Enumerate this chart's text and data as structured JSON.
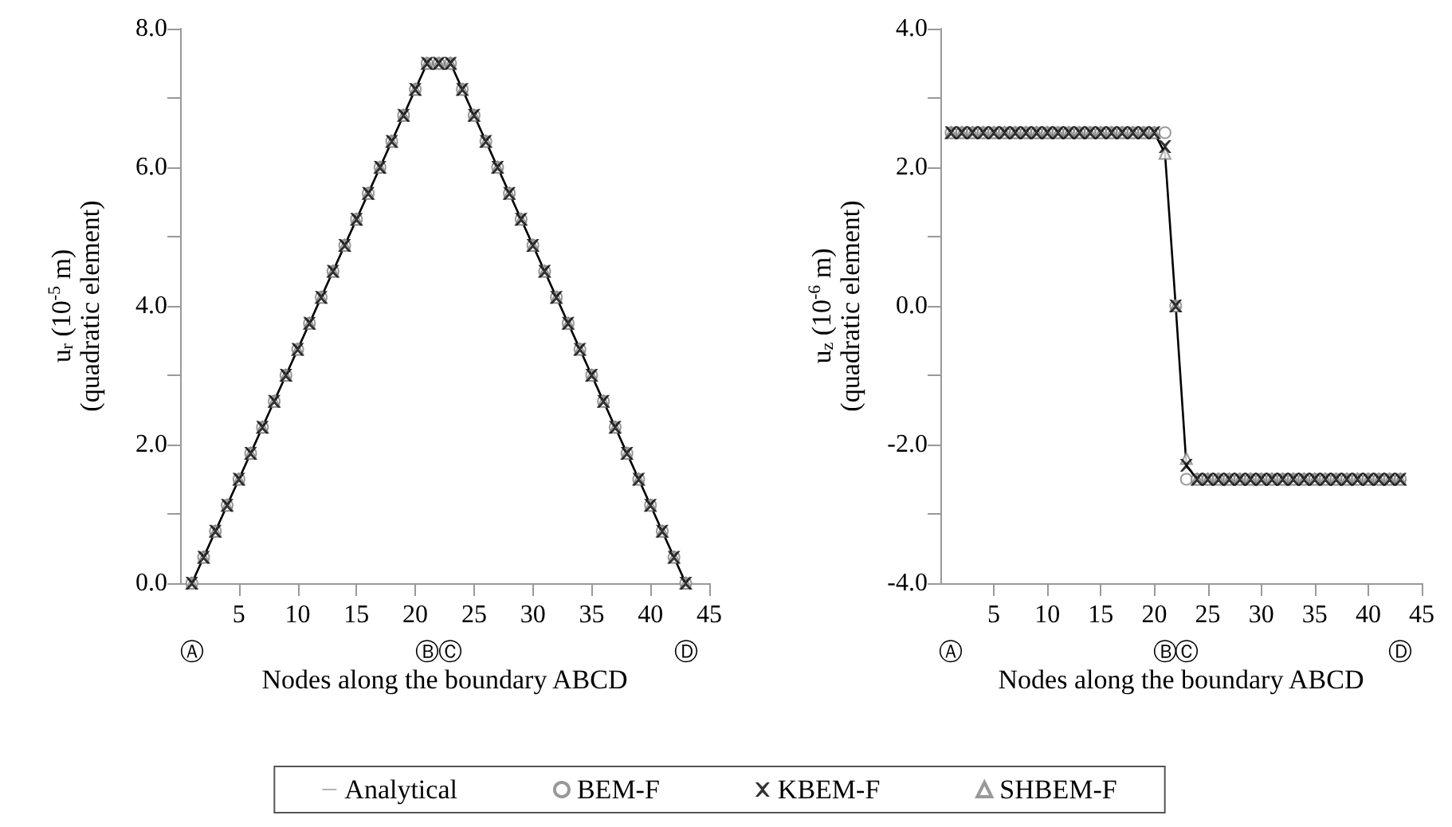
{
  "chart_data": [
    {
      "type": "line",
      "ylabel": "u$_{r}$ (10$^{-5}$ m)\n(quadratic element)",
      "xlabel": "Nodes along the boundary ABCD",
      "x": [
        1,
        2,
        3,
        4,
        5,
        6,
        7,
        8,
        9,
        10,
        11,
        12,
        13,
        14,
        15,
        16,
        17,
        18,
        19,
        20,
        21,
        22,
        23,
        24,
        25,
        26,
        27,
        28,
        29,
        30,
        31,
        32,
        33,
        34,
        35,
        36,
        37,
        38,
        39,
        40,
        41,
        42,
        43
      ],
      "xlim": [
        0,
        45
      ],
      "xticks": [
        5,
        10,
        15,
        20,
        25,
        30,
        35,
        40,
        45
      ],
      "annotations": [
        "Ⓐ",
        "Ⓑ",
        "Ⓒ",
        "Ⓓ"
      ],
      "ylim": [
        0,
        8
      ],
      "yticks": [
        {
          "value": 0,
          "label": "0.0"
        },
        {
          "value": 1,
          "label": null
        },
        {
          "value": 2,
          "label": "2.0"
        },
        {
          "value": 3,
          "label": null
        },
        {
          "value": 4,
          "label": "4.0"
        },
        {
          "value": 5,
          "label": null
        },
        {
          "value": 6,
          "label": "6.0"
        },
        {
          "value": 7,
          "label": null
        },
        {
          "value": 8,
          "label": "8.0"
        }
      ],
      "grid": false,
      "legend": false,
      "series": [
        {
          "color": "#000000",
          "marker": "none",
          "line_style": "solid",
          "values": [
            0,
            0.375,
            0.75,
            1.125,
            1.5,
            1.875,
            2.25,
            2.625,
            3,
            3.375,
            3.75,
            4.125,
            4.5,
            4.875,
            5.25,
            5.625,
            6,
            6.375,
            6.75,
            7.125,
            7.5,
            7.5,
            7.5,
            7.125,
            6.75,
            6.375,
            6,
            5.625,
            5.25,
            4.875,
            4.5,
            4.125,
            3.75,
            3.375,
            3,
            2.625,
            2.25,
            1.875,
            1.5,
            1.125,
            0.75,
            0.375,
            0
          ]
        },
        {
          "type": "scatter",
          "color": "#808080",
          "marker": "circle",
          "values": [
            0,
            0.375,
            0.75,
            1.125,
            1.5,
            1.875,
            2.25,
            2.625,
            3,
            3.375,
            3.75,
            4.125,
            4.5,
            4.875,
            5.25,
            5.625,
            6,
            6.375,
            6.75,
            7.125,
            7.5,
            7.5,
            7.5,
            7.125,
            6.75,
            6.375,
            6,
            5.625,
            5.25,
            4.875,
            4.5,
            4.125,
            3.75,
            3.375,
            3,
            2.625,
            2.25,
            1.875,
            1.5,
            1.125,
            0.75,
            0.375,
            0
          ]
        },
        {
          "type": "scatter",
          "color": "#000000",
          "marker": "cross",
          "values": [
            0,
            0.375,
            0.75,
            1.125,
            1.5,
            1.875,
            2.25,
            2.625,
            3,
            3.375,
            3.75,
            4.125,
            4.5,
            4.875,
            5.25,
            5.625,
            6,
            6.375,
            6.75,
            7.125,
            7.5,
            7.5,
            7.5,
            7.125,
            6.75,
            6.375,
            6,
            5.625,
            5.25,
            4.875,
            4.5,
            4.125,
            3.75,
            3.375,
            3,
            2.625,
            2.25,
            1.875,
            1.5,
            1.125,
            0.75,
            0.375,
            0
          ]
        },
        {
          "type": "scatter",
          "color": "#808080",
          "marker": "triangle",
          "values": [
            0,
            0.375,
            0.75,
            1.125,
            1.5,
            1.875,
            2.25,
            2.625,
            3,
            3.375,
            3.75,
            4.125,
            4.5,
            4.875,
            5.25,
            5.625,
            6,
            6.375,
            6.75,
            7.125,
            7.5,
            7.5,
            7.5,
            7.125,
            6.75,
            6.375,
            6,
            5.625,
            5.25,
            4.875,
            4.5,
            4.125,
            3.75,
            3.375,
            3,
            2.625,
            2.25,
            1.875,
            1.5,
            1.125,
            0.75,
            0.375,
            0
          ]
        }
      ]
    },
    {
      "type": "line",
      "ylabel": "u$_{z}$ (10$^{-6}$ m)\n(quadratic element)",
      "xlabel": "Nodes along the boundary ABCD",
      "x": [
        1,
        2,
        3,
        4,
        5,
        6,
        7,
        8,
        9,
        10,
        11,
        12,
        13,
        14,
        15,
        16,
        17,
        18,
        19,
        20,
        21,
        22,
        23,
        24,
        25,
        26,
        27,
        28,
        29,
        30,
        31,
        32,
        33,
        34,
        35,
        36,
        37,
        38,
        39,
        40,
        41,
        42,
        43
      ],
      "xlim": [
        0,
        45
      ],
      "xticks": [
        5,
        10,
        15,
        20,
        25,
        30,
        35,
        40,
        45
      ],
      "annotations": [
        "Ⓐ",
        "Ⓑ",
        "Ⓒ",
        "Ⓓ"
      ],
      "ylim": [
        -4,
        4
      ],
      "yticks": [
        {
          "value": -4,
          "label": "-4.0"
        },
        {
          "value": -3,
          "label": null
        },
        {
          "value": -2,
          "label": "-2.0"
        },
        {
          "value": -1,
          "label": null
        },
        {
          "value": 0,
          "label": "0.0"
        },
        {
          "value": 1,
          "label": null
        },
        {
          "value": 2,
          "label": "2.0"
        },
        {
          "value": 3,
          "label": null
        },
        {
          "value": 4,
          "label": "4.0"
        }
      ],
      "grid": false,
      "legend": "bottom",
      "series": [
        {
          "name": "Analytical",
          "color": "#000000",
          "marker": "none",
          "line_style": "solid",
          "values": [
            2.5,
            2.5,
            2.5,
            2.5,
            2.5,
            2.5,
            2.5,
            2.5,
            2.5,
            2.5,
            2.5,
            2.5,
            2.5,
            2.5,
            2.5,
            2.5,
            2.5,
            2.5,
            2.5,
            2.5,
            2.2,
            0,
            -2.3,
            -2.5,
            -2.5,
            -2.5,
            -2.5,
            -2.5,
            -2.5,
            -2.5,
            -2.5,
            -2.5,
            -2.5,
            -2.5,
            -2.5,
            -2.5,
            -2.5,
            -2.5,
            -2.5,
            -2.5,
            -2.5,
            -2.5,
            -2.5
          ]
        },
        {
          "name": "BEM-F",
          "type": "scatter",
          "color": "#808080",
          "marker": "circle",
          "values": [
            2.5,
            2.5,
            2.5,
            2.5,
            2.5,
            2.5,
            2.5,
            2.5,
            2.5,
            2.5,
            2.5,
            2.5,
            2.5,
            2.5,
            2.5,
            2.5,
            2.5,
            2.5,
            2.5,
            2.5,
            2.5,
            0,
            -2.5,
            -2.5,
            -2.5,
            -2.5,
            -2.5,
            -2.5,
            -2.5,
            -2.5,
            -2.5,
            -2.5,
            -2.5,
            -2.5,
            -2.5,
            -2.5,
            -2.5,
            -2.5,
            -2.5,
            -2.5,
            -2.5,
            -2.5,
            -2.5
          ]
        },
        {
          "name": "KBEM-F",
          "type": "scatter",
          "color": "#000000",
          "marker": "cross",
          "values": [
            2.5,
            2.5,
            2.5,
            2.5,
            2.5,
            2.5,
            2.5,
            2.5,
            2.5,
            2.5,
            2.5,
            2.5,
            2.5,
            2.5,
            2.5,
            2.5,
            2.5,
            2.5,
            2.5,
            2.5,
            2.3,
            0,
            -2.3,
            -2.5,
            -2.5,
            -2.5,
            -2.5,
            -2.5,
            -2.5,
            -2.5,
            -2.5,
            -2.5,
            -2.5,
            -2.5,
            -2.5,
            -2.5,
            -2.5,
            -2.5,
            -2.5,
            -2.5,
            -2.5,
            -2.5,
            -2.5
          ]
        },
        {
          "name": "SHBEM-F",
          "type": "scatter",
          "color": "#808080",
          "marker": "triangle",
          "values": [
            2.5,
            2.5,
            2.5,
            2.5,
            2.5,
            2.5,
            2.5,
            2.5,
            2.5,
            2.5,
            2.5,
            2.5,
            2.5,
            2.5,
            2.5,
            2.5,
            2.5,
            2.5,
            2.5,
            2.5,
            2.2,
            0,
            -2.2,
            -2.5,
            -2.5,
            -2.5,
            -2.5,
            -2.5,
            -2.5,
            -2.5,
            -2.5,
            -2.5,
            -2.5,
            -2.5,
            -2.5,
            -2.5,
            -2.5,
            -2.5,
            -2.5,
            -2.5,
            -2.5,
            -2.5,
            -2.5
          ]
        }
      ]
    }
  ]
}
